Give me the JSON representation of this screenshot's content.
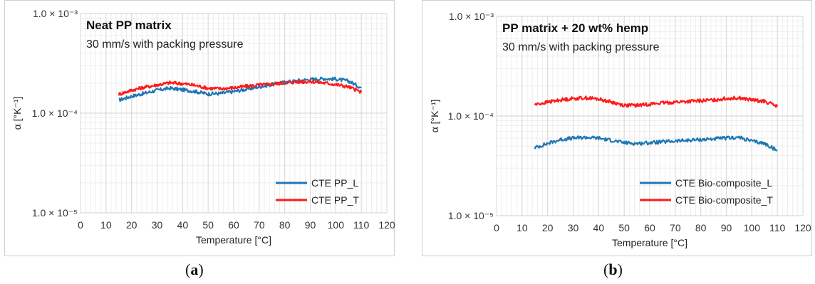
{
  "panels": [
    {
      "caption": "a",
      "annotation_title": "Neat PP matrix",
      "annotation_subtitle": "30 mm/s with packing pressure",
      "legend": [
        "CTE PP_L",
        "CTE PP_T"
      ]
    },
    {
      "caption": "b",
      "annotation_title": "PP matrix + 20 wt% hemp",
      "annotation_subtitle": "30 mm/s with packing pressure",
      "legend": [
        "CTE Bio-composite_L",
        "CTE Bio-composite_T"
      ]
    }
  ],
  "chart_data": [
    {
      "type": "line",
      "title": "",
      "xlabel": "Temperature [°C]",
      "ylabel": "α [°K⁻¹]",
      "xlim": [
        0,
        120
      ],
      "xticks": [
        0,
        10,
        20,
        30,
        40,
        50,
        60,
        70,
        80,
        90,
        100,
        110,
        120
      ],
      "ylim": [
        1e-05,
        0.001
      ],
      "yscale": "log",
      "yticks": [
        1e-05,
        0.0001,
        0.001
      ],
      "ytick_labels": [
        "1.0 × 10⁻⁵",
        "1.0 × 10⁻⁴",
        "1.0 × 10⁻³"
      ],
      "grid": true,
      "legend_position": "bottom-right",
      "x": [
        15,
        20,
        25,
        30,
        35,
        40,
        45,
        50,
        55,
        60,
        65,
        70,
        75,
        80,
        85,
        90,
        95,
        100,
        105,
        110
      ],
      "series": [
        {
          "name": "CTE PP_L",
          "color": "#1f77b4",
          "values": [
            0.000135,
            0.000148,
            0.000158,
            0.00017,
            0.000178,
            0.000172,
            0.000165,
            0.000156,
            0.000158,
            0.000165,
            0.000174,
            0.000184,
            0.000194,
            0.000204,
            0.000212,
            0.000218,
            0.000222,
            0.00022,
            0.00021,
            0.00018
          ]
        },
        {
          "name": "CTE PP_T",
          "color": "#ff1a1a",
          "values": [
            0.000155,
            0.00017,
            0.000182,
            0.000192,
            0.000202,
            0.000198,
            0.00019,
            0.000178,
            0.000176,
            0.00018,
            0.000186,
            0.000192,
            0.000196,
            0.000202,
            0.000206,
            0.000208,
            0.000202,
            0.000194,
            0.000184,
            0.000162
          ]
        }
      ]
    },
    {
      "type": "line",
      "title": "",
      "xlabel": "Temperature [°C]",
      "ylabel": "α [°K⁻¹]",
      "xlim": [
        0,
        120
      ],
      "xticks": [
        0,
        10,
        20,
        30,
        40,
        50,
        60,
        70,
        80,
        90,
        100,
        110,
        120
      ],
      "ylim": [
        1e-05,
        0.001
      ],
      "yscale": "log",
      "yticks": [
        1e-05,
        0.0001,
        0.001
      ],
      "ytick_labels": [
        "1.0 × 10⁻⁵",
        "1.0 × 10⁻⁴",
        "1.0 × 10⁻³"
      ],
      "grid": true,
      "legend_position": "bottom-right",
      "x": [
        15,
        20,
        25,
        30,
        35,
        40,
        45,
        50,
        55,
        60,
        65,
        70,
        75,
        80,
        85,
        90,
        95,
        100,
        105,
        110
      ],
      "series": [
        {
          "name": "CTE Bio-composite_L",
          "color": "#1f77b4",
          "values": [
            4.8e-05,
            5.3e-05,
            5.8e-05,
            6e-05,
            6.1e-05,
            6e-05,
            5.7e-05,
            5.4e-05,
            5.3e-05,
            5.4e-05,
            5.5e-05,
            5.6e-05,
            5.7e-05,
            5.8e-05,
            5.9e-05,
            6e-05,
            6.1e-05,
            5.6e-05,
            5.3e-05,
            4.5e-05
          ]
        },
        {
          "name": "CTE Bio-composite_T",
          "color": "#ff1a1a",
          "values": [
            0.00013,
            0.000138,
            0.000145,
            0.00015,
            0.000152,
            0.000148,
            0.000138,
            0.000128,
            0.000128,
            0.000132,
            0.000135,
            0.000138,
            0.00014,
            0.000142,
            0.000145,
            0.00015,
            0.000152,
            0.000145,
            0.00014,
            0.000125
          ]
        }
      ]
    }
  ]
}
